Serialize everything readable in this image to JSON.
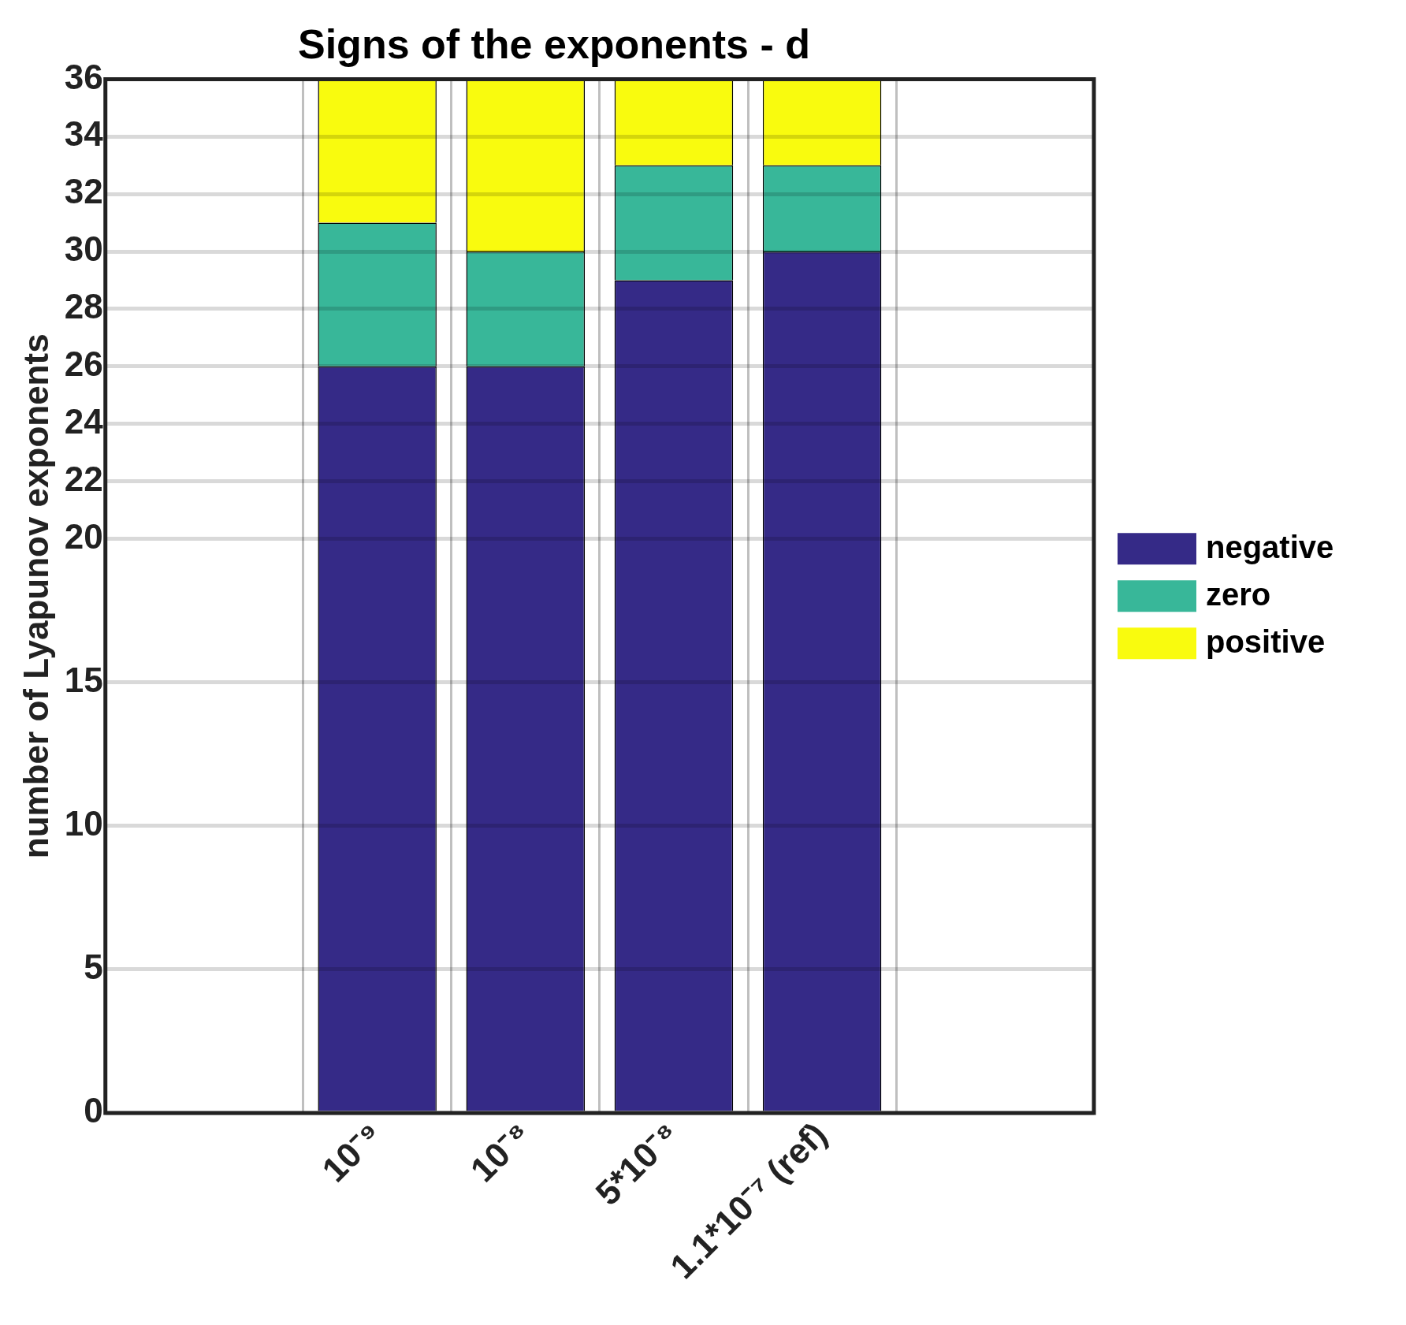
{
  "chart_data": {
    "type": "bar",
    "title": "Signs of the exponents - d",
    "ylabel": "number of Lyapunov exponents",
    "categories": [
      "10⁻⁹",
      "10⁻⁸",
      "5*10⁻⁸",
      "1.1*10⁻⁷ (ref)"
    ],
    "stacked": true,
    "grid": true,
    "legend": "right",
    "ylim": [
      0,
      36
    ],
    "yticks": [
      0,
      5,
      10,
      15,
      20,
      22,
      24,
      26,
      28,
      30,
      32,
      34,
      36
    ],
    "series": [
      {
        "name": "negative",
        "color": "#352a87",
        "values": [
          26,
          26,
          29,
          30
        ]
      },
      {
        "name": "zero",
        "color": "#38b799",
        "values": [
          5,
          4,
          4,
          3
        ]
      },
      {
        "name": "positive",
        "color": "#f9fb0e",
        "values": [
          5,
          6,
          3,
          3
        ]
      }
    ]
  }
}
